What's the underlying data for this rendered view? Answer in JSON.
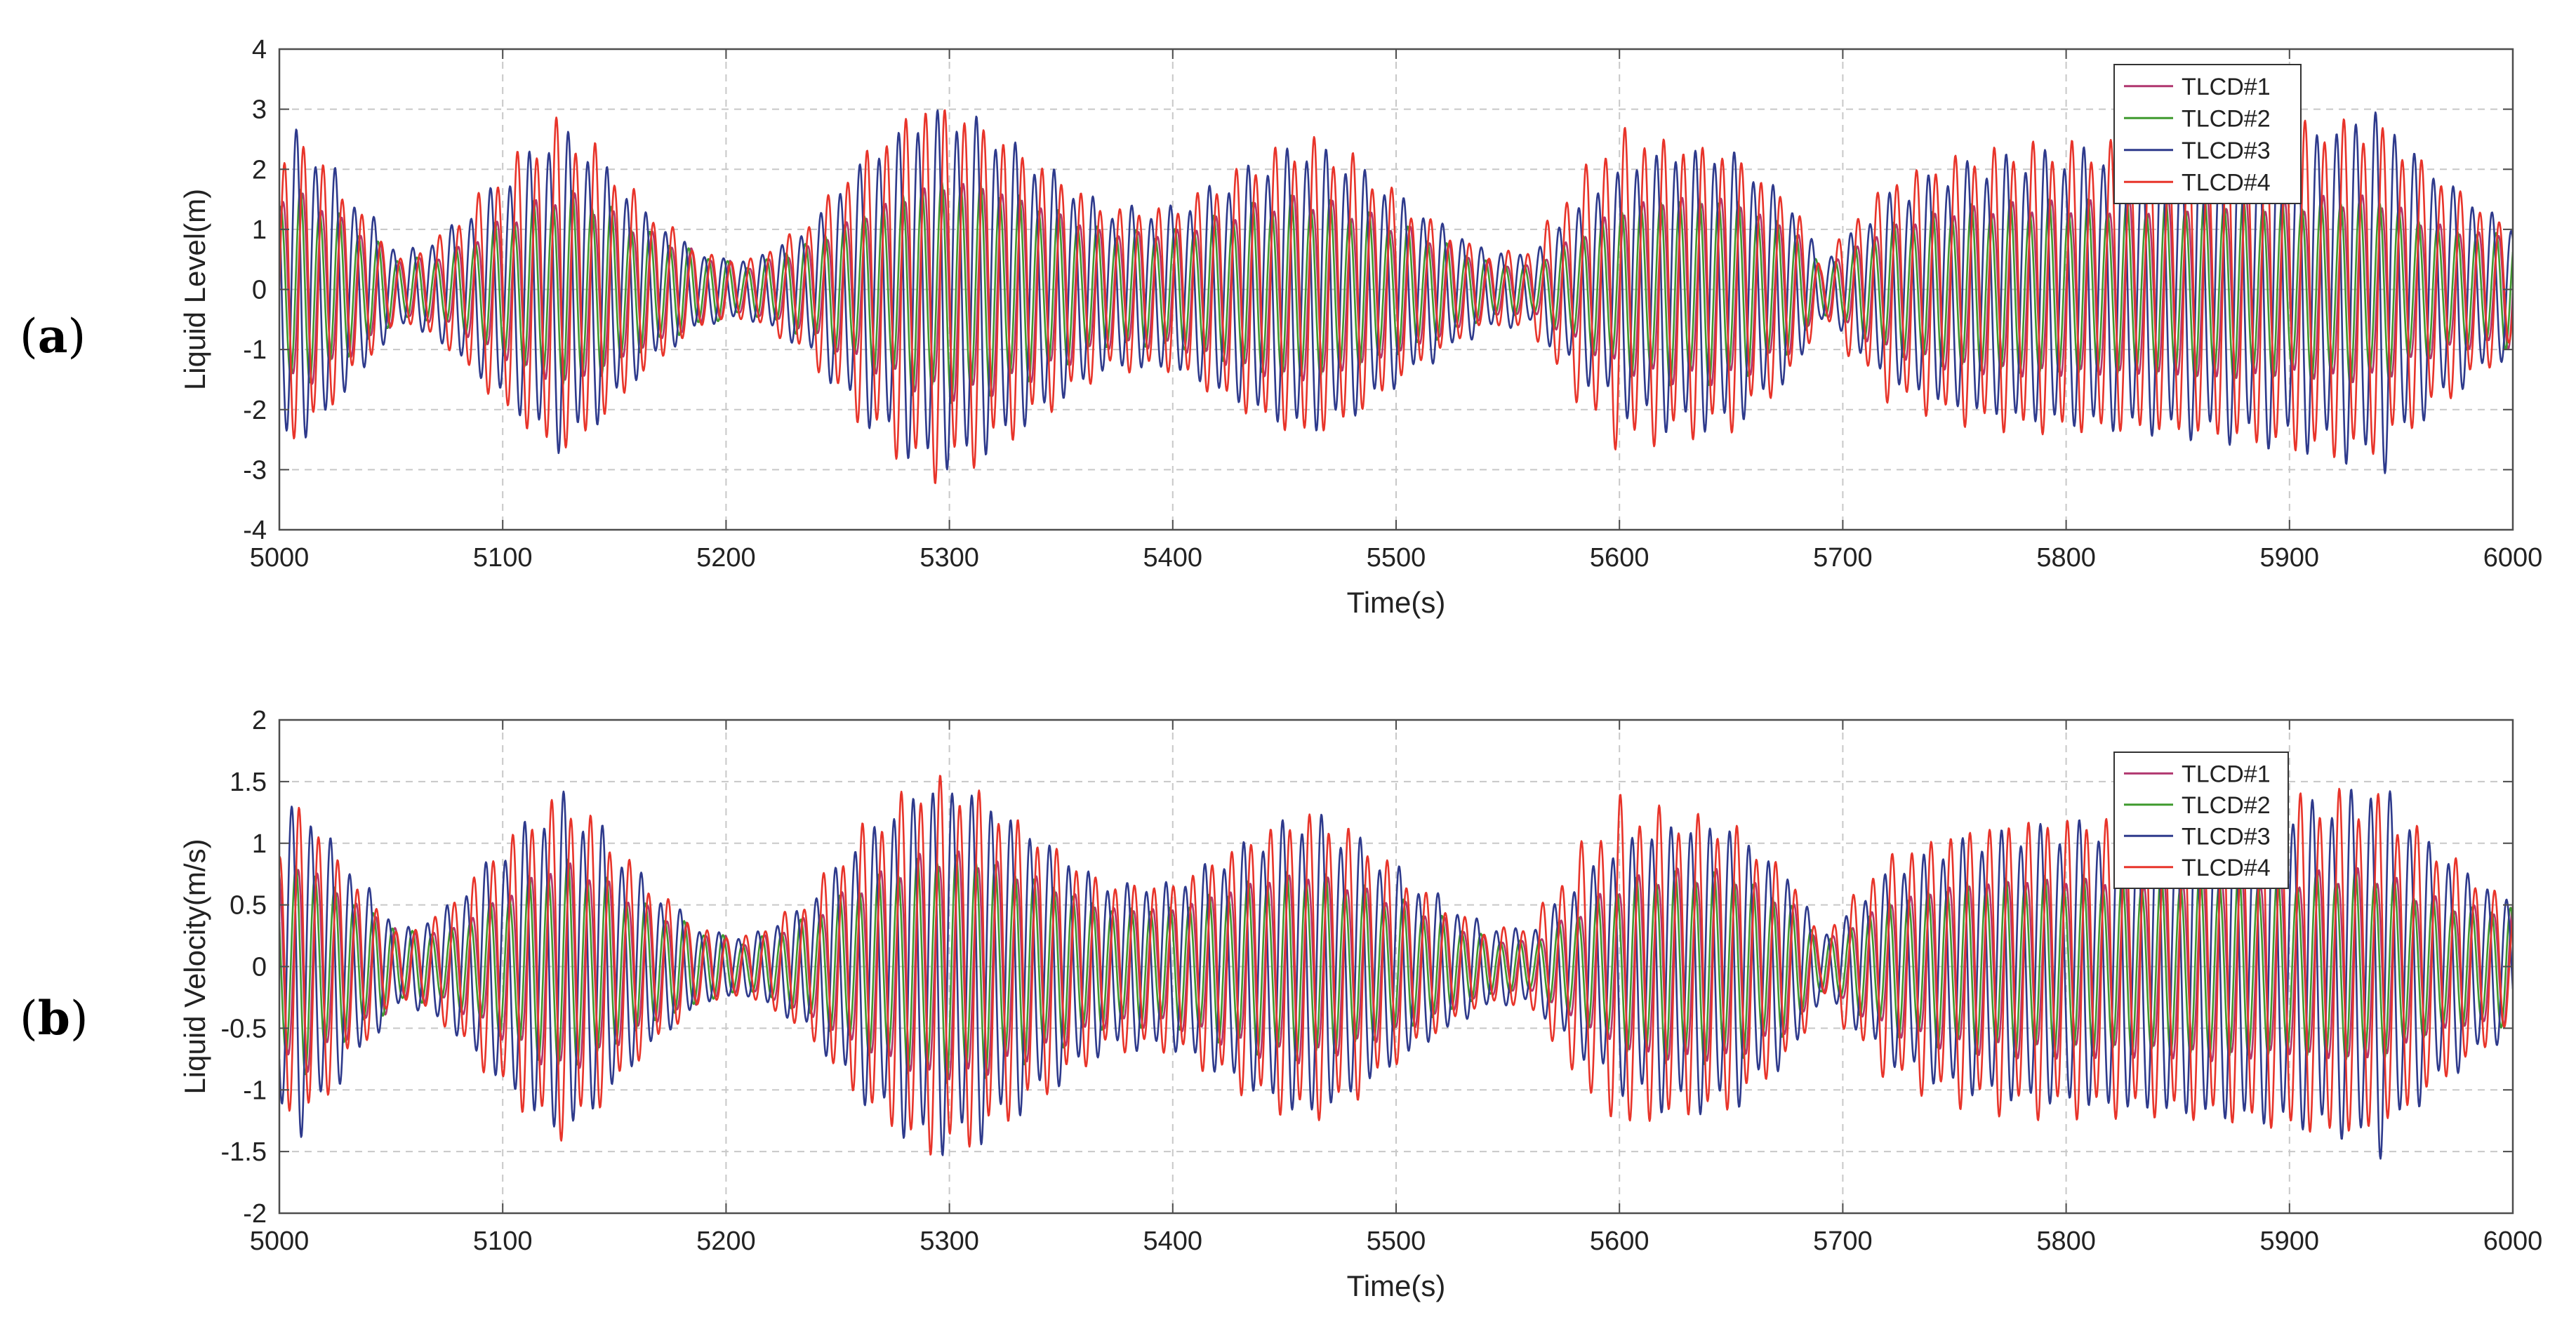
{
  "panel_labels": [
    {
      "open": "(",
      "letter": "a",
      "close": ")"
    },
    {
      "open": "(",
      "letter": "b",
      "close": ")"
    }
  ],
  "colors": {
    "TLCD#1": "#b0356e",
    "TLCD#2": "#3f9a2e",
    "TLCD#3": "#2e3a8c",
    "TLCD#4": "#e8342a",
    "grid": "#c8c8c8",
    "axis": "#4d4d4d"
  },
  "chart_data": [
    {
      "type": "line",
      "panel": "a",
      "xlabel": "Time(s)",
      "ylabel": "Liquid Level(m)",
      "xlim": [
        5000,
        6000
      ],
      "ylim": [
        -4,
        4
      ],
      "x_ticks": [
        5000,
        5100,
        5200,
        5300,
        5400,
        5500,
        5600,
        5700,
        5800,
        5900,
        6000
      ],
      "y_ticks": [
        -4,
        -3,
        -2,
        -1,
        0,
        1,
        2,
        3,
        4
      ],
      "grid": true,
      "legend_position": "top-right",
      "legend": [
        "TLCD#1",
        "TLCD#2",
        "TLCD#3",
        "TLCD#4"
      ],
      "envelope_time": [
        5000,
        5010,
        5030,
        5055,
        5075,
        5100,
        5125,
        5140,
        5165,
        5190,
        5210,
        5235,
        5260,
        5290,
        5310,
        5340,
        5370,
        5400,
        5440,
        5460,
        5480,
        5510,
        5540,
        5560,
        5580,
        5600,
        5620,
        5650,
        5680,
        5690,
        5700,
        5720,
        5750,
        5780,
        5810,
        5840,
        5870,
        5900,
        5920,
        5940,
        5960,
        5980,
        6000
      ],
      "series": [
        {
          "name": "TLCD#1",
          "period": 8.7,
          "phase": 0.3,
          "envelope": [
            1.6,
            1.7,
            1.2,
            0.5,
            0.6,
            1.2,
            1.7,
            1.5,
            1.0,
            0.6,
            0.4,
            0.7,
            1.3,
            1.8,
            1.9,
            1.5,
            1.0,
            1.0,
            1.5,
            1.6,
            1.4,
            1.0,
            0.5,
            0.4,
            0.9,
            1.4,
            1.6,
            1.6,
            1.0,
            0.4,
            0.6,
            1.1,
            1.4,
            1.5,
            1.5,
            1.5,
            1.6,
            1.5,
            1.6,
            1.6,
            1.2,
            1.0,
            1.0
          ]
        },
        {
          "name": "TLCD#2",
          "period": 8.7,
          "phase": 1.1,
          "envelope": [
            1.6,
            1.7,
            1.2,
            0.5,
            0.6,
            1.2,
            1.7,
            1.6,
            1.0,
            0.6,
            0.4,
            0.8,
            1.3,
            1.9,
            1.9,
            1.5,
            1.0,
            1.0,
            1.5,
            1.6,
            1.4,
            1.0,
            0.5,
            0.4,
            0.9,
            1.4,
            1.6,
            1.6,
            1.0,
            0.4,
            0.6,
            1.1,
            1.4,
            1.5,
            1.5,
            1.5,
            1.6,
            1.5,
            1.6,
            1.6,
            1.2,
            1.0,
            1.0
          ]
        },
        {
          "name": "TLCD#3",
          "period": 8.7,
          "phase": 2.4,
          "envelope": [
            2.6,
            2.7,
            1.8,
            0.6,
            1.0,
            1.9,
            2.8,
            2.4,
            1.3,
            0.6,
            0.5,
            1.0,
            2.2,
            3.1,
            3.0,
            2.2,
            1.4,
            1.4,
            2.2,
            2.5,
            2.2,
            1.4,
            0.7,
            0.6,
            1.4,
            2.1,
            2.4,
            2.4,
            1.4,
            0.5,
            0.8,
            1.6,
            2.1,
            2.3,
            2.4,
            2.5,
            2.6,
            2.7,
            2.8,
            3.2,
            2.2,
            1.6,
            1.1
          ]
        },
        {
          "name": "TLCD#4",
          "period": 8.7,
          "phase": 0.0,
          "envelope": [
            2.1,
            2.7,
            1.6,
            0.5,
            1.0,
            2.1,
            2.9,
            2.5,
            1.4,
            0.6,
            0.5,
            1.1,
            2.3,
            3.3,
            3.0,
            2.2,
            1.4,
            1.4,
            2.3,
            2.6,
            2.3,
            1.3,
            0.6,
            0.7,
            1.9,
            2.8,
            2.6,
            2.4,
            1.4,
            0.4,
            1.0,
            1.9,
            2.3,
            2.5,
            2.5,
            2.5,
            2.6,
            2.8,
            2.9,
            2.8,
            2.2,
            1.6,
            1.0
          ]
        }
      ]
    },
    {
      "type": "line",
      "panel": "b",
      "xlabel": "Time(s)",
      "ylabel": "Liquid Velocity(m/s)",
      "xlim": [
        5000,
        6000
      ],
      "ylim": [
        -2,
        2
      ],
      "x_ticks": [
        5000,
        5100,
        5200,
        5300,
        5400,
        5500,
        5600,
        5700,
        5800,
        5900,
        6000
      ],
      "y_ticks": [
        -2,
        -1.5,
        -1,
        -0.5,
        0,
        0.5,
        1,
        1.5,
        2
      ],
      "grid": true,
      "legend_position": "top-right",
      "legend": [
        "TLCD#1",
        "TLCD#2",
        "TLCD#3",
        "TLCD#4"
      ],
      "envelope_time": [
        5000,
        5010,
        5030,
        5055,
        5075,
        5100,
        5125,
        5140,
        5165,
        5190,
        5210,
        5235,
        5260,
        5290,
        5310,
        5340,
        5370,
        5400,
        5440,
        5460,
        5480,
        5510,
        5540,
        5560,
        5580,
        5600,
        5620,
        5650,
        5680,
        5690,
        5700,
        5720,
        5750,
        5780,
        5810,
        5840,
        5870,
        5900,
        5920,
        5940,
        5960,
        5980,
        6000
      ],
      "series": [
        {
          "name": "TLCD#1",
          "period": 8.7,
          "phase": 1.8,
          "envelope": [
            0.8,
            0.9,
            0.6,
            0.3,
            0.3,
            0.6,
            0.9,
            0.8,
            0.5,
            0.3,
            0.2,
            0.4,
            0.7,
            0.95,
            0.95,
            0.75,
            0.5,
            0.5,
            0.75,
            0.8,
            0.7,
            0.5,
            0.25,
            0.2,
            0.45,
            0.7,
            0.8,
            0.8,
            0.5,
            0.2,
            0.3,
            0.55,
            0.7,
            0.75,
            0.75,
            0.75,
            0.8,
            0.75,
            0.8,
            0.8,
            0.6,
            0.5,
            0.5
          ]
        },
        {
          "name": "TLCD#2",
          "period": 8.7,
          "phase": 2.6,
          "envelope": [
            0.8,
            0.9,
            0.6,
            0.3,
            0.3,
            0.6,
            0.9,
            0.8,
            0.5,
            0.3,
            0.2,
            0.4,
            0.7,
            0.95,
            0.95,
            0.75,
            0.5,
            0.5,
            0.75,
            0.8,
            0.7,
            0.5,
            0.25,
            0.2,
            0.45,
            0.7,
            0.8,
            0.8,
            0.5,
            0.2,
            0.3,
            0.55,
            0.7,
            0.75,
            0.75,
            0.75,
            0.8,
            0.75,
            0.8,
            0.8,
            0.6,
            0.5,
            0.5
          ]
        },
        {
          "name": "TLCD#3",
          "period": 8.7,
          "phase": 3.9,
          "envelope": [
            1.3,
            1.4,
            0.9,
            0.3,
            0.5,
            1.0,
            1.45,
            1.25,
            0.7,
            0.3,
            0.25,
            0.5,
            1.1,
            1.55,
            1.5,
            1.1,
            0.7,
            0.7,
            1.1,
            1.3,
            1.1,
            0.7,
            0.35,
            0.3,
            0.7,
            1.05,
            1.2,
            1.2,
            0.7,
            0.25,
            0.4,
            0.8,
            1.05,
            1.15,
            1.2,
            1.25,
            1.3,
            1.35,
            1.4,
            1.6,
            1.1,
            0.8,
            0.55
          ]
        },
        {
          "name": "TLCD#4",
          "period": 8.7,
          "phase": 1.5,
          "envelope": [
            1.0,
            1.4,
            0.8,
            0.25,
            0.5,
            1.05,
            1.45,
            1.25,
            0.7,
            0.3,
            0.25,
            0.55,
            1.15,
            1.6,
            1.5,
            1.1,
            0.7,
            0.7,
            1.15,
            1.3,
            1.15,
            0.65,
            0.3,
            0.35,
            0.95,
            1.4,
            1.3,
            1.2,
            0.7,
            0.2,
            0.5,
            0.95,
            1.15,
            1.25,
            1.25,
            1.25,
            1.3,
            1.4,
            1.45,
            1.4,
            1.1,
            0.8,
            0.5
          ]
        }
      ]
    }
  ]
}
